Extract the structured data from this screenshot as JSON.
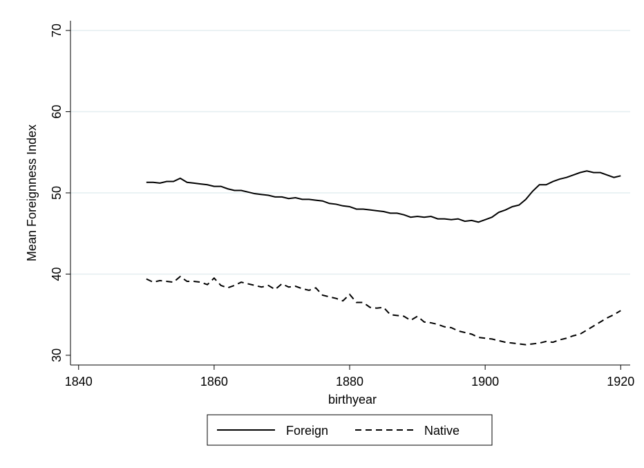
{
  "chart_data": {
    "type": "line",
    "xlabel": "birthyear",
    "ylabel": "Mean Foreignness Index",
    "x": [
      1850,
      1851,
      1852,
      1853,
      1854,
      1855,
      1856,
      1857,
      1858,
      1859,
      1860,
      1861,
      1862,
      1863,
      1864,
      1865,
      1866,
      1867,
      1868,
      1869,
      1870,
      1871,
      1872,
      1873,
      1874,
      1875,
      1876,
      1877,
      1878,
      1879,
      1880,
      1881,
      1882,
      1883,
      1884,
      1885,
      1886,
      1887,
      1888,
      1889,
      1890,
      1891,
      1892,
      1893,
      1894,
      1895,
      1896,
      1897,
      1898,
      1899,
      1900,
      1901,
      1902,
      1903,
      1904,
      1905,
      1906,
      1907,
      1908,
      1909,
      1910,
      1911,
      1912,
      1913,
      1914,
      1915,
      1916,
      1917,
      1918,
      1919,
      1920
    ],
    "series": [
      {
        "name": "Foreign",
        "color": "#000000",
        "dash": "solid",
        "values": [
          51.3,
          51.3,
          51.2,
          51.4,
          51.4,
          51.8,
          51.3,
          51.2,
          51.1,
          51.0,
          50.8,
          50.8,
          50.5,
          50.3,
          50.3,
          50.1,
          49.9,
          49.8,
          49.7,
          49.5,
          49.5,
          49.3,
          49.4,
          49.2,
          49.2,
          49.1,
          49.0,
          48.7,
          48.6,
          48.4,
          48.3,
          48.0,
          48.0,
          47.9,
          47.8,
          47.7,
          47.5,
          47.5,
          47.3,
          47.0,
          47.1,
          47.0,
          47.1,
          46.8,
          46.8,
          46.7,
          46.8,
          46.5,
          46.6,
          46.4,
          46.7,
          47.0,
          47.6,
          47.9,
          48.3,
          48.5,
          49.2,
          50.2,
          51.0,
          51.0,
          51.4,
          51.7,
          51.9,
          52.2,
          52.5,
          52.7,
          52.5,
          52.5,
          52.2,
          51.9,
          52.1
        ]
      },
      {
        "name": "Native",
        "color": "#000000",
        "dash": "dashed",
        "values": [
          39.4,
          39.0,
          39.2,
          39.1,
          39.0,
          39.7,
          39.1,
          39.1,
          39.0,
          38.7,
          39.5,
          38.6,
          38.3,
          38.6,
          39.0,
          38.8,
          38.6,
          38.4,
          38.6,
          38.1,
          38.8,
          38.4,
          38.5,
          38.2,
          38.0,
          38.3,
          37.4,
          37.2,
          37.0,
          36.7,
          37.5,
          36.5,
          36.5,
          35.9,
          35.8,
          35.9,
          35.0,
          34.9,
          34.8,
          34.3,
          34.8,
          34.1,
          34.0,
          33.8,
          33.5,
          33.4,
          33.0,
          32.8,
          32.6,
          32.2,
          32.1,
          32.0,
          31.8,
          31.6,
          31.5,
          31.4,
          31.3,
          31.4,
          31.5,
          31.7,
          31.6,
          31.9,
          32.1,
          32.4,
          32.6,
          33.1,
          33.6,
          34.1,
          34.6,
          35.0,
          35.5
        ]
      }
    ],
    "xlim": [
      1838.8,
      1921.4
    ],
    "xticks": [
      1840,
      1860,
      1880,
      1900,
      1920
    ],
    "ylim": [
      28.8,
      71.2
    ],
    "yticks": [
      30,
      40,
      50,
      60,
      70
    ],
    "grid": true,
    "legend": "bottom"
  }
}
